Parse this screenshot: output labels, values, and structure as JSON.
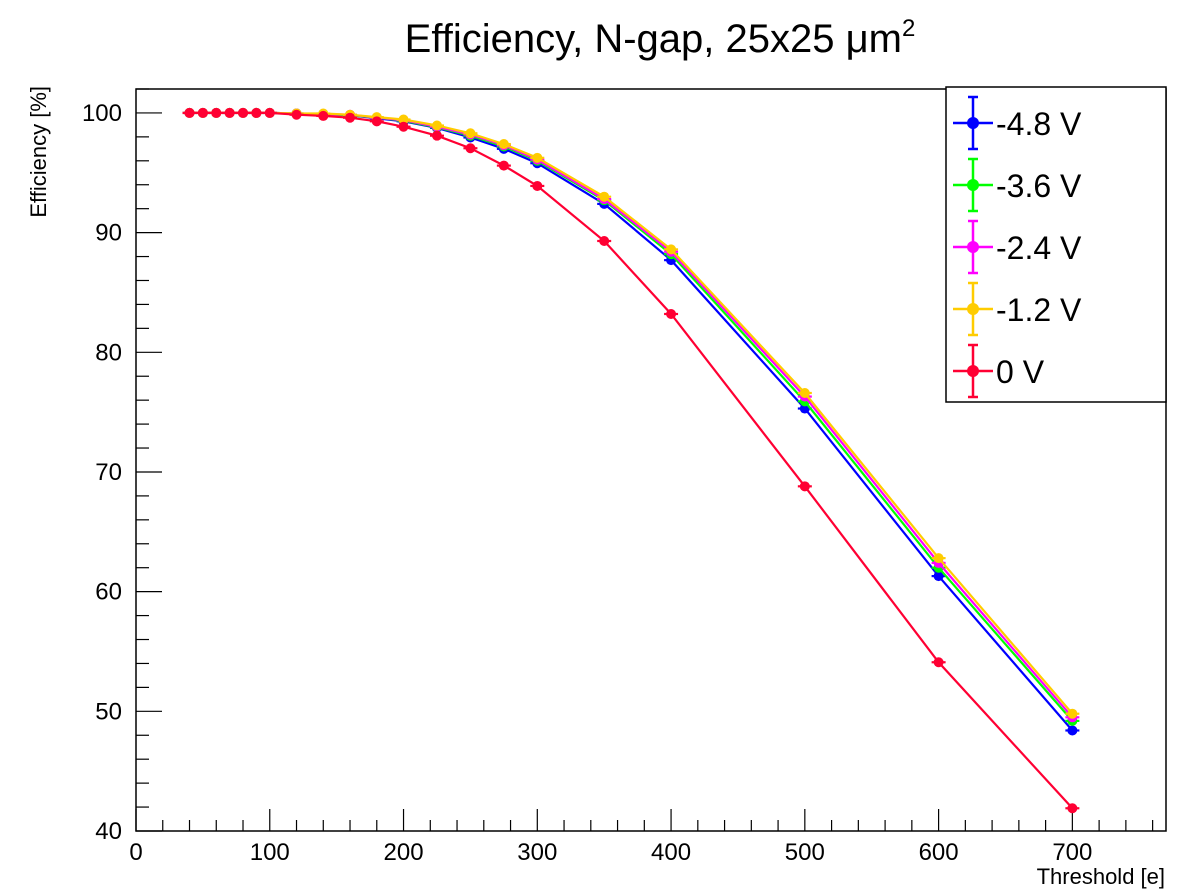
{
  "chart_data": {
    "type": "line",
    "title": "Efficiency, N-gap, 25x25 μm",
    "title_superscript": "2",
    "xlabel": "Threshold [e]",
    "ylabel": "Efficiency [%]",
    "xlim": [
      0,
      770
    ],
    "ylim": [
      40,
      102
    ],
    "xticks": [
      0,
      100,
      200,
      300,
      400,
      500,
      600,
      700
    ],
    "yticks": [
      40,
      50,
      60,
      70,
      80,
      90,
      100
    ],
    "grid": false,
    "legend_position": "top-right",
    "x": [
      40,
      50,
      60,
      70,
      80,
      90,
      100,
      120,
      140,
      160,
      180,
      200,
      225,
      250,
      275,
      300,
      350,
      400,
      500,
      600,
      700
    ],
    "series": [
      {
        "name": "-4.8 V",
        "color": "#0000ff",
        "values": [
          100,
          100,
          100,
          100,
          100,
          100,
          100,
          99.95,
          99.9,
          99.8,
          99.55,
          99.3,
          98.75,
          97.95,
          97.0,
          95.8,
          92.4,
          87.7,
          75.3,
          61.3,
          48.4
        ]
      },
      {
        "name": "-3.6 V",
        "color": "#00ff00",
        "values": [
          100,
          100,
          100,
          100,
          100,
          100,
          100,
          99.95,
          99.9,
          99.8,
          99.6,
          99.35,
          98.8,
          98.1,
          97.2,
          96.0,
          92.7,
          88.2,
          75.9,
          62.0,
          49.2
        ]
      },
      {
        "name": "-2.4 V",
        "color": "#ff00ff",
        "values": [
          100,
          100,
          100,
          100,
          100,
          100,
          100,
          99.95,
          99.9,
          99.85,
          99.6,
          99.4,
          98.85,
          98.2,
          97.3,
          96.1,
          92.8,
          88.4,
          76.3,
          62.4,
          49.5
        ]
      },
      {
        "name": "-1.2 V",
        "color": "#ffcc00",
        "values": [
          100,
          100,
          100,
          100,
          100,
          100,
          100,
          99.95,
          99.95,
          99.85,
          99.65,
          99.45,
          98.95,
          98.3,
          97.4,
          96.25,
          93.0,
          88.6,
          76.6,
          62.8,
          49.8
        ]
      },
      {
        "name": "0 V",
        "color": "#ff0033",
        "values": [
          100,
          100,
          100,
          100,
          100,
          100,
          100,
          99.85,
          99.75,
          99.6,
          99.3,
          98.85,
          98.1,
          97.05,
          95.6,
          93.9,
          89.3,
          83.2,
          68.8,
          54.1,
          41.9
        ]
      }
    ]
  }
}
